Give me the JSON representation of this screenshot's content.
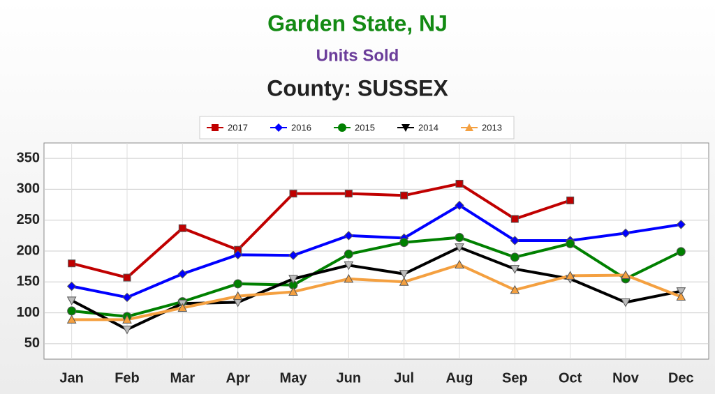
{
  "chart_data": {
    "type": "line",
    "title": "Garden State, NJ",
    "subtitle": "Units Sold",
    "subtitle2": "County: SUSSEX",
    "categories": [
      "Jan",
      "Feb",
      "Mar",
      "Apr",
      "May",
      "Jun",
      "Jul",
      "Aug",
      "Sep",
      "Oct",
      "Nov",
      "Dec"
    ],
    "series": [
      {
        "name": "2017",
        "color": "#c00000",
        "marker": "square",
        "values": [
          180,
          157,
          237,
          202,
          293,
          293,
          290,
          309,
          252,
          282,
          null,
          null
        ]
      },
      {
        "name": "2016",
        "color": "#0000ff",
        "marker": "diamond",
        "values": [
          143,
          125,
          163,
          194,
          193,
          225,
          221,
          274,
          217,
          217,
          229,
          243
        ]
      },
      {
        "name": "2015",
        "color": "#008000",
        "marker": "circle",
        "values": [
          103,
          94,
          118,
          147,
          145,
          195,
          214,
          222,
          190,
          212,
          155,
          199
        ]
      },
      {
        "name": "2014",
        "color": "#000000",
        "marker": "triangle-down",
        "values": [
          120,
          73,
          115,
          117,
          155,
          177,
          163,
          206,
          171,
          155,
          117,
          135
        ]
      },
      {
        "name": "2013",
        "color": "#f4a040",
        "marker": "triangle-up",
        "values": [
          89,
          89,
          108,
          127,
          134,
          155,
          150,
          178,
          137,
          160,
          161,
          126
        ]
      }
    ],
    "ylim": [
      25,
      375
    ],
    "yticks": [
      50,
      100,
      150,
      200,
      250,
      300,
      350
    ],
    "grid": true,
    "legend": "top"
  }
}
